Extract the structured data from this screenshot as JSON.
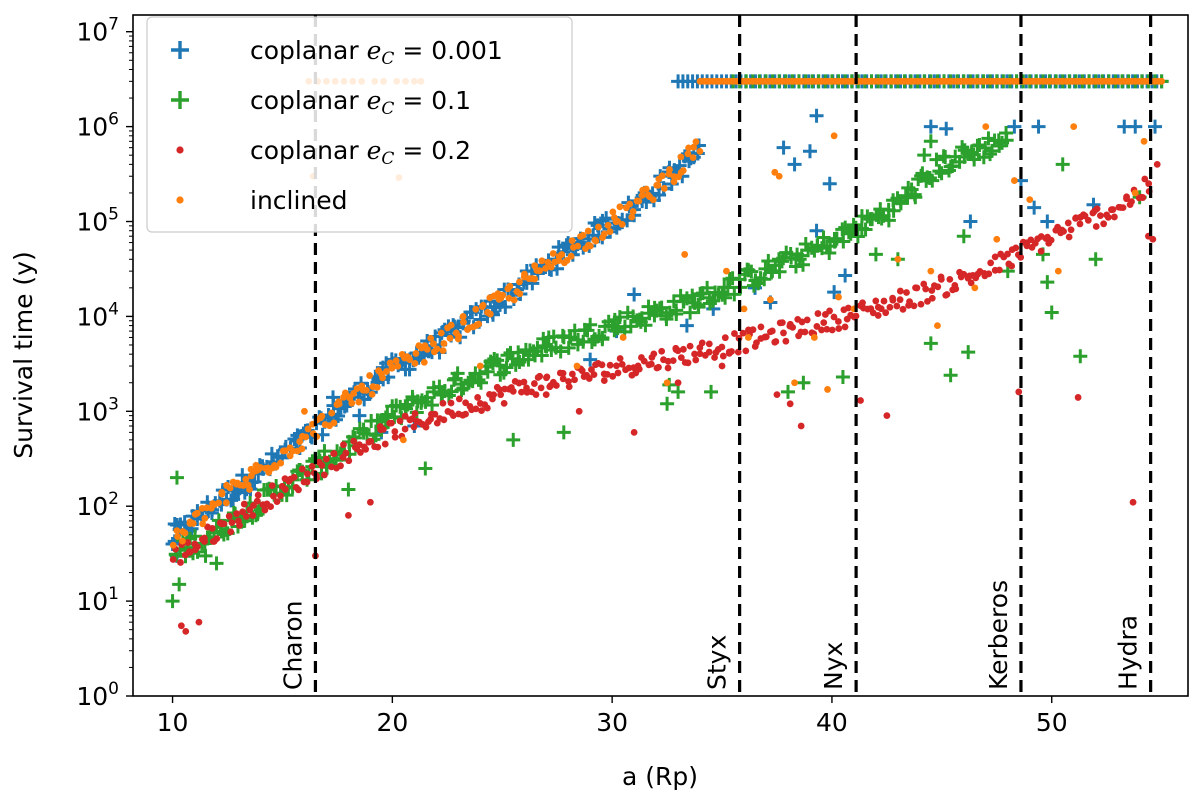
{
  "chart_data": {
    "type": "scatter",
    "xlabel": "a (Rp)",
    "ylabel": "Survival time (y)",
    "xlim": [
      8.2,
      56.2
    ],
    "ylim": [
      1,
      15000000
    ],
    "yscale": "log",
    "xticks": [
      10,
      20,
      30,
      40,
      50
    ],
    "yticks": [
      {
        "value": 1,
        "exp": "0"
      },
      {
        "value": 10,
        "exp": "1"
      },
      {
        "value": 100,
        "exp": "2"
      },
      {
        "value": 1000,
        "exp": "3"
      },
      {
        "value": 10000,
        "exp": "4"
      },
      {
        "value": 100000,
        "exp": "5"
      },
      {
        "value": 1000000,
        "exp": "6"
      },
      {
        "value": 10000000,
        "exp": "7"
      }
    ],
    "grid": false,
    "legend_position": "upper-left",
    "vlines": [
      {
        "label": "Charon",
        "x": 16.5
      },
      {
        "label": "Styx",
        "x": 35.8
      },
      {
        "label": "Nyx",
        "x": 41.1
      },
      {
        "label": "Kerberos",
        "x": 48.6
      },
      {
        "label": "Hydra",
        "x": 54.5
      }
    ],
    "series": [
      {
        "name": "coplanar e_C = 0.001",
        "legend_prefix": "coplanar ",
        "legend_math": "e",
        "legend_sub": "C",
        "legend_suffix": " = 0.001",
        "marker": "plus",
        "color": "#1f77b4",
        "trend": [
          [
            10,
            45
          ],
          [
            12,
            110
          ],
          [
            14,
            230
          ],
          [
            16.5,
            620
          ],
          [
            18,
            1300
          ],
          [
            20,
            2800
          ],
          [
            22,
            5000
          ],
          [
            25,
            15000
          ],
          [
            28,
            50000
          ],
          [
            31,
            140000
          ],
          [
            34,
            550000
          ]
        ],
        "points": [
          [
            10.0,
            40
          ],
          [
            10.1,
            65
          ],
          [
            10.2,
            30
          ],
          [
            13.5,
            180
          ],
          [
            17.3,
            1400
          ],
          [
            18.5,
            900
          ],
          [
            19.5,
            600
          ],
          [
            21.0,
            700
          ],
          [
            29.0,
            3500
          ],
          [
            30.2,
            7000
          ],
          [
            31.0,
            17000
          ],
          [
            33.4,
            8000
          ],
          [
            34.6,
            12000
          ],
          [
            36.5,
            20000
          ],
          [
            37.2,
            14000
          ],
          [
            37.8,
            600000
          ],
          [
            38.3,
            400000
          ],
          [
            39.0,
            550000
          ],
          [
            39.3,
            1300000
          ],
          [
            39.9,
            250000
          ],
          [
            39.3,
            80000
          ],
          [
            40.1,
            18000
          ],
          [
            40.6,
            27000
          ],
          [
            44.5,
            1000000
          ],
          [
            45.2,
            950000
          ],
          [
            46.3,
            100000
          ],
          [
            48.3,
            1000000
          ],
          [
            48.6,
            270000
          ],
          [
            49.2,
            140000
          ],
          [
            49.4,
            1000000
          ],
          [
            49.8,
            100000
          ],
          [
            51.9,
            150000
          ],
          [
            53.3,
            1000000
          ],
          [
            53.8,
            1000000
          ],
          [
            54.7,
            1000000
          ]
        ],
        "band": {
          "x0": 33.0,
          "x1": 55.0,
          "y": 3000000,
          "step": 0.22
        }
      },
      {
        "name": "coplanar e_C = 0.1",
        "legend_prefix": "coplanar ",
        "legend_math": "e",
        "legend_sub": "C",
        "legend_suffix": " = 0.1",
        "marker": "plus",
        "color": "#2ca02c",
        "trend": [
          [
            10,
            30
          ],
          [
            12,
            55
          ],
          [
            14,
            110
          ],
          [
            16,
            220
          ],
          [
            18,
            420
          ],
          [
            20,
            900
          ],
          [
            23,
            2000
          ],
          [
            26,
            4000
          ],
          [
            30,
            8000
          ],
          [
            34,
            15000
          ],
          [
            37,
            30000
          ],
          [
            40,
            60000
          ],
          [
            43,
            150000
          ],
          [
            45,
            400000
          ],
          [
            48,
            750000
          ]
        ],
        "points": [
          [
            10.0,
            10
          ],
          [
            10.2,
            200
          ],
          [
            10.3,
            15
          ],
          [
            11.5,
            30
          ],
          [
            12.0,
            25
          ],
          [
            16.7,
            300
          ],
          [
            18.0,
            150
          ],
          [
            19.5,
            700
          ],
          [
            21.5,
            250
          ],
          [
            25.5,
            500
          ],
          [
            27.8,
            600
          ],
          [
            33.0,
            1600
          ],
          [
            34.5,
            1600
          ],
          [
            32.5,
            1200
          ],
          [
            32.6,
            1900
          ],
          [
            38.0,
            1600
          ],
          [
            38.7,
            2000
          ],
          [
            40.5,
            2300
          ],
          [
            42.0,
            45000
          ],
          [
            43.0,
            40000
          ],
          [
            44.5,
            5200
          ],
          [
            45.4,
            2400
          ],
          [
            46.2,
            4200
          ],
          [
            46.0,
            70000
          ],
          [
            48.0,
            30000
          ],
          [
            49.6,
            45000
          ],
          [
            49.8,
            23000
          ],
          [
            50.0,
            11000
          ],
          [
            50.5,
            400000
          ],
          [
            51.3,
            3800
          ],
          [
            52.0,
            40000
          ],
          [
            54.0,
            180000
          ],
          [
            44.2,
            500000
          ],
          [
            44.5,
            700000
          ]
        ],
        "band": {
          "x0": 35.5,
          "x1": 55.0,
          "y": 3000000,
          "step": 0.3
        }
      },
      {
        "name": "coplanar e_C = 0.2",
        "legend_prefix": "coplanar ",
        "legend_math": "e",
        "legend_sub": "C",
        "legend_suffix": " = 0.2",
        "marker": "dot",
        "color": "#d62728",
        "trend": [
          [
            10,
            28
          ],
          [
            12,
            55
          ],
          [
            14,
            110
          ],
          [
            16.5,
            240
          ],
          [
            18,
            380
          ],
          [
            20,
            620
          ],
          [
            23,
            1100
          ],
          [
            26,
            1800
          ],
          [
            30,
            2800
          ],
          [
            34,
            4300
          ],
          [
            37,
            6200
          ],
          [
            41,
            10500
          ],
          [
            44,
            17000
          ],
          [
            47,
            30000
          ],
          [
            50,
            70000
          ],
          [
            53,
            140000
          ],
          [
            54.5,
            240000
          ]
        ],
        "points": [
          [
            10.4,
            5.5
          ],
          [
            10.6,
            4.8
          ],
          [
            11.2,
            6
          ],
          [
            16.5,
            30
          ],
          [
            18.0,
            80
          ],
          [
            19.0,
            110
          ],
          [
            28.5,
            1000
          ],
          [
            31.0,
            600
          ],
          [
            37.5,
            1500
          ],
          [
            38.1,
            1200
          ],
          [
            38.6,
            700
          ],
          [
            41.3,
            1300
          ],
          [
            42.5,
            900
          ],
          [
            48.5,
            1600
          ],
          [
            51.2,
            1400
          ],
          [
            53.7,
            110
          ],
          [
            54.8,
            400000
          ],
          [
            54.6,
            65000
          ],
          [
            54.4,
            70000
          ],
          [
            27.0,
            1500
          ],
          [
            33.0,
            2000
          ],
          [
            35.0,
            3000
          ]
        ]
      },
      {
        "name": "inclined",
        "legend_prefix": "inclined",
        "legend_math": "",
        "legend_sub": "",
        "legend_suffix": "",
        "marker": "dot",
        "color": "#ff7f0e",
        "trend": [
          [
            10,
            40
          ],
          [
            12,
            110
          ],
          [
            14,
            240
          ],
          [
            16.5,
            650
          ],
          [
            18,
            1300
          ],
          [
            20,
            2700
          ],
          [
            22,
            5000
          ],
          [
            25,
            15000
          ],
          [
            28,
            50000
          ],
          [
            31,
            140000
          ],
          [
            34,
            600000
          ]
        ],
        "points": [
          [
            13.8,
            270
          ],
          [
            13.5,
            150
          ],
          [
            16.0,
            1000
          ],
          [
            20.5,
            500
          ],
          [
            24.0,
            3000
          ],
          [
            28.4,
            3000
          ],
          [
            30.5,
            6000
          ],
          [
            32.5,
            2000
          ],
          [
            33.3,
            45000
          ],
          [
            35.2,
            30000
          ],
          [
            36.0,
            12000
          ],
          [
            36.2,
            6000
          ],
          [
            37.2,
            15000
          ],
          [
            37.4,
            330000
          ],
          [
            37.6,
            300000
          ],
          [
            38.3,
            2000
          ],
          [
            39.2,
            6000
          ],
          [
            39.8,
            1700
          ],
          [
            40.1,
            800000
          ],
          [
            40.3,
            16000
          ],
          [
            41.0,
            12000
          ],
          [
            43.0,
            40000
          ],
          [
            44.5,
            30000
          ],
          [
            44.8,
            8000
          ],
          [
            46.5,
            20000
          ],
          [
            47.0,
            1000000
          ],
          [
            47.5,
            65000
          ],
          [
            48.3,
            270000
          ],
          [
            49.0,
            170000
          ],
          [
            50.3,
            30000
          ],
          [
            51.0,
            1000000
          ],
          [
            53.8,
            200000
          ],
          [
            54.2,
            700000
          ],
          [
            16.2,
            3000000
          ],
          [
            16.6,
            3000000
          ],
          [
            17.0,
            3000000
          ],
          [
            17.4,
            3000000
          ],
          [
            17.8,
            3000000
          ],
          [
            18.2,
            3000000
          ],
          [
            18.6,
            3000000
          ],
          [
            19.2,
            3000000
          ],
          [
            19.6,
            3000000
          ],
          [
            20.2,
            3000000
          ],
          [
            20.6,
            3000000
          ],
          [
            21.0,
            3000000
          ],
          [
            21.3,
            3000000
          ],
          [
            16.4,
            300000
          ],
          [
            20.3,
            290000
          ]
        ],
        "band": {
          "x0": 34.0,
          "x1": 55.0,
          "y": 3000000,
          "step": 0.15
        }
      }
    ]
  }
}
